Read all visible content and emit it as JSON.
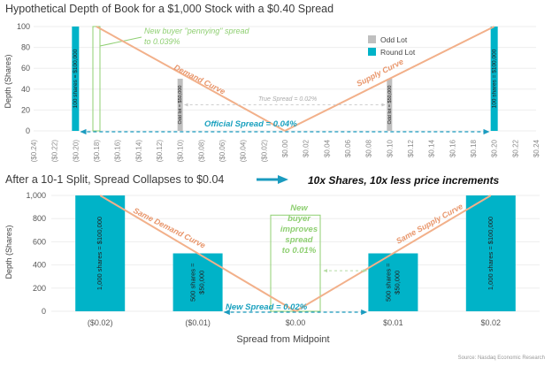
{
  "colors": {
    "round_lot": "#00b3c8",
    "odd_lot": "#bfbfbf",
    "supply_demand": "#f2b08a",
    "spread_arrow": "#1a9bbf",
    "annotation_green": "#8fcf72"
  },
  "chart_data": [
    {
      "type": "bar",
      "title": "Hypothetical Depth of Book for a $1,000 Stock with a $0.40 Spread",
      "xlabel": "",
      "ylabel": "Depth (Shares)",
      "ylim": [
        0,
        100
      ],
      "yticks": [
        "0",
        "20",
        "40",
        "60",
        "80",
        "100"
      ],
      "xlim": [
        -0.24,
        0.24
      ],
      "xticks": [
        {
          "value": -0.24,
          "label": "($0.24)"
        },
        {
          "value": -0.22,
          "label": "($0.22)"
        },
        {
          "value": -0.2,
          "label": "($0.20)"
        },
        {
          "value": -0.18,
          "label": "($0.18)"
        },
        {
          "value": -0.16,
          "label": "($0.16)"
        },
        {
          "value": -0.14,
          "label": "($0.14)"
        },
        {
          "value": -0.12,
          "label": "($0.12)"
        },
        {
          "value": -0.1,
          "label": "($0.10)"
        },
        {
          "value": -0.08,
          "label": "($0.08)"
        },
        {
          "value": -0.06,
          "label": "($0.06)"
        },
        {
          "value": -0.04,
          "label": "($0.04)"
        },
        {
          "value": -0.02,
          "label": "($0.02)"
        },
        {
          "value": 0.0,
          "label": "$0.00"
        },
        {
          "value": 0.02,
          "label": "$0.02"
        },
        {
          "value": 0.04,
          "label": "$0.04"
        },
        {
          "value": 0.06,
          "label": "$0.06"
        },
        {
          "value": 0.08,
          "label": "$0.08"
        },
        {
          "value": 0.1,
          "label": "$0.10"
        },
        {
          "value": 0.12,
          "label": "$0.12"
        },
        {
          "value": 0.14,
          "label": "$0.14"
        },
        {
          "value": 0.16,
          "label": "$0.16"
        },
        {
          "value": 0.18,
          "label": "$0.18"
        },
        {
          "value": 0.2,
          "label": "$0.20"
        },
        {
          "value": 0.22,
          "label": "$0.22"
        },
        {
          "value": 0.24,
          "label": "$0.24"
        }
      ],
      "legend": {
        "position": "top-right",
        "items": [
          {
            "name": "Odd Lot",
            "color": "#bfbfbf"
          },
          {
            "name": "Round Lot",
            "color": "#00b3c8"
          }
        ]
      },
      "series": [
        {
          "name": "Round Lot",
          "points": [
            {
              "x": -0.2,
              "y": 100,
              "label": "100 shares = $100,000"
            },
            {
              "x": 0.2,
              "y": 100,
              "label": "100 shares = $100,000"
            }
          ]
        },
        {
          "name": "Odd Lot",
          "points": [
            {
              "x": -0.1,
              "y": 50,
              "label": "Odd lot = $50,000"
            },
            {
              "x": 0.1,
              "y": 50,
              "label": "Odd lot = $50,000"
            }
          ]
        }
      ],
      "outline_bar": {
        "x": -0.18,
        "y": 100
      },
      "curves": {
        "demand": {
          "points": [
            [
              -0.18,
              100
            ],
            [
              0.0,
              0
            ]
          ]
        },
        "supply": {
          "points": [
            [
              0.0,
              0
            ],
            [
              0.2,
              100
            ]
          ]
        }
      },
      "spreads": {
        "official": {
          "from": -0.2,
          "to": 0.2,
          "y": 0
        },
        "true": {
          "from": -0.1,
          "to": 0.1,
          "y": 25
        }
      },
      "annotations": {
        "pennying_line1": "New buyer \"pennying\" spread",
        "pennying_line2": "to 0.039%",
        "demand": "Demand Curve",
        "supply": "Supply Curve",
        "true_spread": "True Spread = 0.02%",
        "official_spread": "Official Spread = 0.04%"
      }
    },
    {
      "type": "bar",
      "title": "After a 10-1 Split, Spread Collapses to $0.04",
      "xlabel": "Spread from Midpoint",
      "ylabel": "Depth (Shares)",
      "ylim": [
        0,
        1000
      ],
      "yticks": [
        "0",
        "200",
        "400",
        "600",
        "800",
        "1,000"
      ],
      "categories": [
        "($0.02)",
        "($0.01)",
        "$0.00",
        "$0.01",
        "$0.02"
      ],
      "series": [
        {
          "name": "Round Lot",
          "values": [
            1000,
            500,
            0,
            500,
            1000
          ],
          "labels": [
            "1,000 shares = $100,000",
            "500 shares = $50,000",
            "",
            "500 shares = $50,000",
            "1,000 shares = $100,000"
          ]
        }
      ],
      "outline_bar": {
        "category": "$0.00",
        "y": 830
      },
      "curves": {
        "demand": {
          "points": [
            [
              "($0.02)",
              1000
            ],
            [
              "$0.00",
              0
            ]
          ]
        },
        "supply": {
          "points": [
            [
              "$0.00",
              0
            ],
            [
              "$0.02",
              1000
            ]
          ]
        }
      },
      "spreads": {
        "new": {
          "from": "($0.01)",
          "to": "$0.01",
          "y": 0
        },
        "improved": {
          "from": "$0.00",
          "to": "$0.01",
          "y": 350
        }
      },
      "annotations": {
        "headline": "10x Shares, 10x less price increments",
        "demand": "Same Demand Curve",
        "supply": "Same Supply Curve",
        "new_spread": "New Spread = 0.02%",
        "improver_lines": [
          "New",
          "buyer",
          "improves",
          "spread",
          "to 0.01%"
        ]
      }
    }
  ],
  "source": "Source: Nasdaq Economic Research"
}
